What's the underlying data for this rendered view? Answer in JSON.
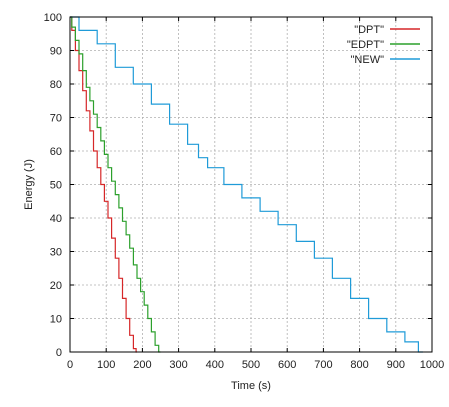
{
  "chart_data": {
    "type": "line",
    "title": "",
    "xlabel": "Time (s)",
    "ylabel": "Energy (J)",
    "xlim": [
      0,
      1000
    ],
    "ylim": [
      0,
      100
    ],
    "xticks": [
      0,
      100,
      200,
      300,
      400,
      500,
      600,
      700,
      800,
      900,
      1000
    ],
    "yticks": [
      0,
      10,
      20,
      30,
      40,
      50,
      60,
      70,
      80,
      90,
      100
    ],
    "grid": true,
    "legend_position": "top-right",
    "series": [
      {
        "name": "\"DPT\"",
        "color": "#d62728",
        "x": [
          0,
          10,
          20,
          30,
          40,
          50,
          60,
          70,
          80,
          90,
          100,
          110,
          120,
          130,
          140,
          150,
          160,
          170,
          180,
          185
        ],
        "y": [
          100,
          96,
          90,
          84,
          78,
          72,
          66,
          60,
          55,
          50,
          45,
          40,
          34,
          28,
          22,
          16,
          10,
          5,
          1,
          0
        ]
      },
      {
        "name": "\"EDPT\"",
        "color": "#2ca02c",
        "x": [
          0,
          10,
          20,
          30,
          40,
          50,
          60,
          70,
          80,
          90,
          100,
          110,
          120,
          130,
          140,
          150,
          160,
          170,
          180,
          190,
          200,
          210,
          220,
          230,
          240,
          250
        ],
        "y": [
          100,
          97,
          93,
          89,
          84,
          79,
          75,
          71,
          67,
          63,
          59,
          55,
          51,
          47,
          43,
          39,
          35,
          31,
          26,
          22,
          18,
          14,
          10,
          6,
          2,
          0
        ]
      },
      {
        "name": "\"NEW\"",
        "color": "#1f9bd8",
        "x": [
          0,
          50,
          100,
          150,
          200,
          250,
          300,
          350,
          360,
          400,
          450,
          500,
          550,
          600,
          650,
          700,
          750,
          800,
          850,
          900,
          950,
          975
        ],
        "y": [
          100,
          96,
          92,
          85,
          80,
          74,
          68,
          62,
          58,
          55,
          50,
          46,
          42,
          38,
          33,
          28,
          22,
          16,
          10,
          6,
          3,
          0
        ]
      }
    ]
  }
}
